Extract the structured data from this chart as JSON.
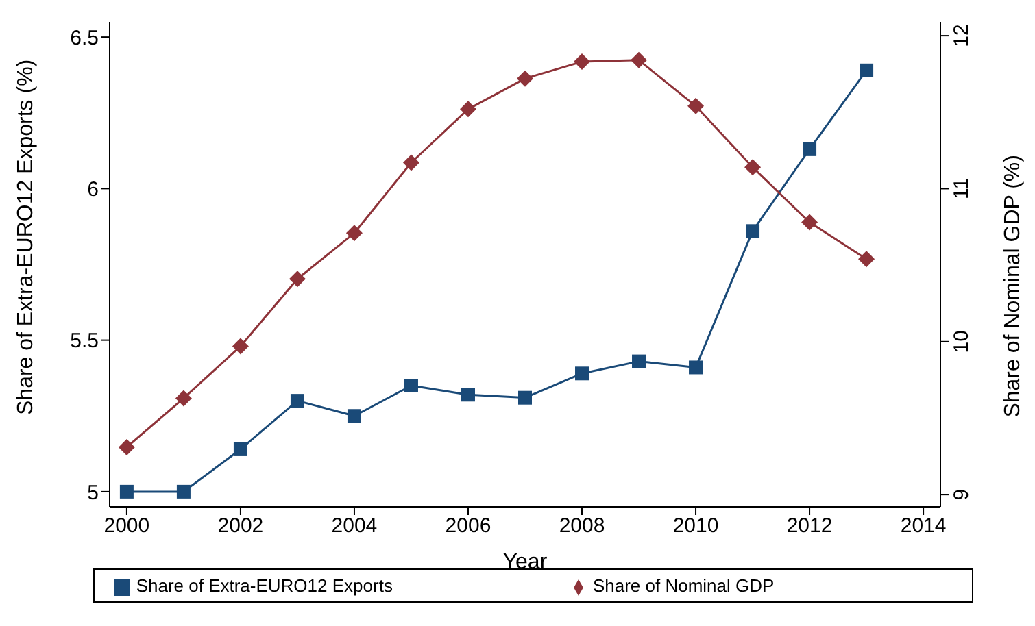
{
  "chart_data": {
    "type": "line",
    "xlabel": "Year",
    "ylabel": "Share of Extra-EURO12 Exports (%)",
    "y2label": "Share of Nominal GDP (%)",
    "x": [
      2000,
      2001,
      2002,
      2003,
      2004,
      2005,
      2006,
      2007,
      2008,
      2009,
      2010,
      2011,
      2012,
      2013
    ],
    "series": [
      {
        "name": "Share of Extra-EURO12 Exports",
        "color": "#1a4a78",
        "marker": "square",
        "values": [
          5.0,
          5.0,
          5.14,
          5.3,
          5.25,
          5.35,
          5.32,
          5.31,
          5.39,
          5.43,
          5.41,
          5.86,
          6.13,
          6.39
        ]
      },
      {
        "name": "Share of Nominal GDP",
        "color": "#8e3339",
        "marker": "diamond",
        "axis": "y2",
        "values": [
          9.31,
          9.63,
          9.97,
          10.41,
          10.71,
          11.17,
          11.52,
          11.72,
          11.83,
          11.84,
          11.54,
          11.14,
          10.78,
          10.54
        ]
      }
    ],
    "xlim": [
      1999.7,
      2014.3
    ],
    "xticks": [
      2000,
      2002,
      2004,
      2006,
      2008,
      2010,
      2012,
      2014
    ],
    "ylim": [
      4.95,
      6.55
    ],
    "yticks": [
      5,
      5.5,
      6,
      6.5
    ],
    "y2lim": [
      8.92,
      12.09
    ],
    "y2ticks": [
      9,
      10,
      11,
      12
    ],
    "grid": false,
    "legend": "bottom",
    "line_style": "solid"
  }
}
